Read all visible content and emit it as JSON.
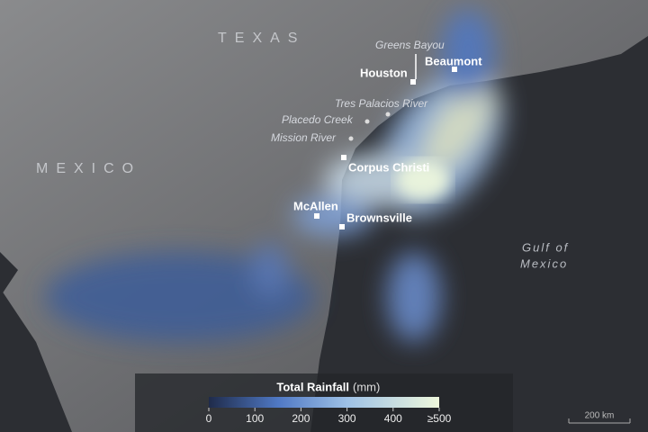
{
  "regions": [
    "TEXAS",
    "MEXICO"
  ],
  "gulf": [
    "Gulf of",
    "Mexico"
  ],
  "cities": [
    "Houston",
    "Beaumont",
    "Corpus Christi",
    "McAllen",
    "Brownsville"
  ],
  "features": [
    "Greens Bayou",
    "Tres Palacios River",
    "Placedo Creek",
    "Mission River"
  ],
  "legend": {
    "title": "Total Rainfall",
    "unit": "(mm)",
    "range": [
      0,
      500
    ],
    "ticks": [
      0,
      100,
      200,
      300,
      400,
      {
        "value": 500,
        "label": "≥500"
      }
    ]
  },
  "scale_bar": "200 km"
}
